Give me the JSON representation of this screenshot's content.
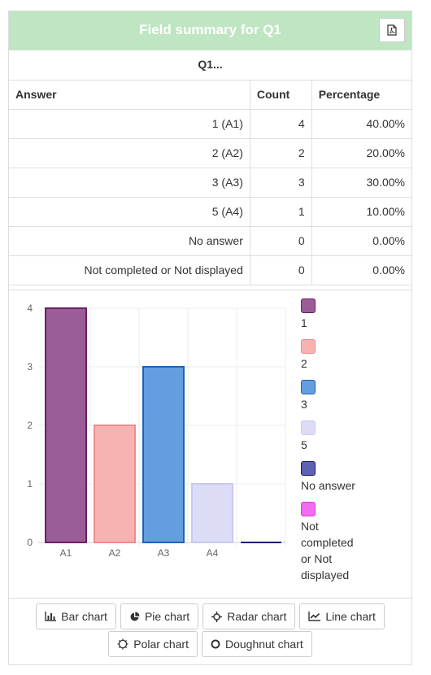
{
  "header": {
    "title": "Field summary for Q1",
    "pdf_icon": "pdf-file-icon"
  },
  "question_label": "Q1...",
  "table": {
    "columns": [
      "Answer",
      "Count",
      "Percentage"
    ],
    "rows": [
      {
        "answer": "1 (A1)",
        "count": "4",
        "percentage": "40.00%"
      },
      {
        "answer": "2 (A2)",
        "count": "2",
        "percentage": "20.00%"
      },
      {
        "answer": "3 (A3)",
        "count": "3",
        "percentage": "30.00%"
      },
      {
        "answer": "5 (A4)",
        "count": "1",
        "percentage": "10.00%"
      },
      {
        "answer": "No answer",
        "count": "0",
        "percentage": "0.00%"
      },
      {
        "answer": "Not completed or Not displayed",
        "count": "0",
        "percentage": "0.00%"
      }
    ]
  },
  "chart_data": {
    "type": "bar",
    "categories": [
      "A1",
      "A2",
      "A3",
      "A4",
      ""
    ],
    "values": [
      4,
      2,
      3,
      1,
      0
    ],
    "ylim": [
      0,
      4
    ],
    "yticks": [
      0,
      1,
      2,
      3,
      4
    ],
    "grid": true,
    "legend_position": "right",
    "colors": [
      {
        "fill": "#9b5d97",
        "stroke": "#6b1f66"
      },
      {
        "fill": "#f9b2b2",
        "stroke": "#ef8c8c"
      },
      {
        "fill": "#639fdf",
        "stroke": "#1f63b3"
      },
      {
        "fill": "#dcdcf7",
        "stroke": "#c8c8f0"
      },
      {
        "fill": "#6161b3",
        "stroke": "#1c1c72"
      },
      {
        "fill": "#f26cf2",
        "stroke": "#d83ed8"
      }
    ],
    "legend": [
      {
        "label": "1"
      },
      {
        "label": "2"
      },
      {
        "label": "3"
      },
      {
        "label": "5"
      },
      {
        "label": "No answer"
      },
      {
        "label": "Not completed or Not displayed"
      }
    ]
  },
  "chart_buttons": [
    {
      "label": "Bar chart",
      "icon": "bar-chart-icon"
    },
    {
      "label": "Pie chart",
      "icon": "pie-chart-icon"
    },
    {
      "label": "Radar chart",
      "icon": "radar-chart-icon"
    },
    {
      "label": "Line chart",
      "icon": "line-chart-icon"
    },
    {
      "label": "Polar chart",
      "icon": "polar-chart-icon"
    },
    {
      "label": "Doughnut chart",
      "icon": "doughnut-chart-icon"
    }
  ]
}
